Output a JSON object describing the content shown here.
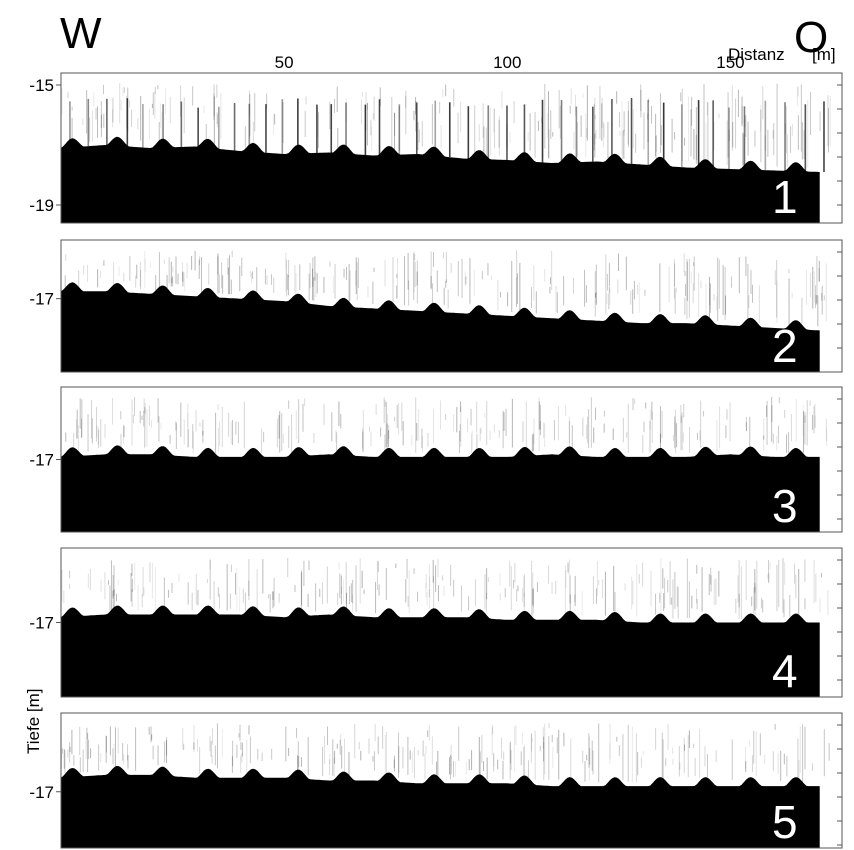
{
  "chart_data": {
    "type": "area",
    "title": "",
    "direction_labels": {
      "left": "W",
      "right": "O"
    },
    "xlabel": "Distanz",
    "xunit": "[m]",
    "ylabel": "Tiefe [m]",
    "xlim": [
      0,
      175
    ],
    "x_ticks": [
      50,
      100,
      150
    ],
    "grid": false,
    "legend": "none",
    "panels": [
      {
        "id": "1",
        "label": "1",
        "ylim": [
          -14.6,
          -19.6
        ],
        "y_ticks": [
          -15,
          -19
        ],
        "profile": {
          "x": [
            0,
            10,
            20,
            30,
            40,
            50,
            60,
            70,
            80,
            90,
            100,
            110,
            120,
            130,
            140,
            150,
            160,
            170
          ],
          "y": [
            -17.1,
            -17.0,
            -17.1,
            -17.05,
            -17.2,
            -17.3,
            -17.25,
            -17.35,
            -17.3,
            -17.45,
            -17.5,
            -17.6,
            -17.55,
            -17.65,
            -17.75,
            -17.8,
            -17.85,
            -17.9
          ]
        }
      },
      {
        "id": "2",
        "label": "2",
        "ylim": [
          -15.8,
          -18.5
        ],
        "y_ticks": [
          -17
        ],
        "profile": {
          "x": [
            0,
            10,
            20,
            30,
            40,
            50,
            60,
            70,
            80,
            90,
            100,
            110,
            120,
            130,
            140,
            150,
            160,
            170
          ],
          "y": [
            -16.85,
            -16.85,
            -16.9,
            -16.95,
            -17.0,
            -17.05,
            -17.15,
            -17.2,
            -17.25,
            -17.3,
            -17.35,
            -17.4,
            -17.45,
            -17.5,
            -17.5,
            -17.55,
            -17.6,
            -17.65
          ]
        }
      },
      {
        "id": "3",
        "label": "3",
        "ylim": [
          -15.6,
          -18.4
        ],
        "y_ticks": [
          -17
        ],
        "profile": {
          "x": [
            0,
            10,
            20,
            30,
            40,
            50,
            60,
            70,
            80,
            90,
            100,
            110,
            120,
            130,
            140,
            150,
            160,
            170
          ],
          "y": [
            -16.95,
            -16.9,
            -16.9,
            -16.95,
            -16.95,
            -16.95,
            -16.9,
            -16.95,
            -16.95,
            -16.95,
            -16.95,
            -16.9,
            -16.95,
            -16.95,
            -16.95,
            -16.9,
            -16.95,
            -16.95
          ]
        }
      },
      {
        "id": "4",
        "label": "4",
        "ylim": [
          -15.6,
          -18.4
        ],
        "y_ticks": [
          -17
        ],
        "profile": {
          "x": [
            0,
            10,
            20,
            30,
            40,
            50,
            60,
            70,
            80,
            90,
            100,
            110,
            120,
            130,
            140,
            150,
            160,
            170
          ],
          "y": [
            -16.9,
            -16.85,
            -16.85,
            -16.85,
            -16.85,
            -16.9,
            -16.85,
            -16.9,
            -16.9,
            -16.9,
            -16.95,
            -16.95,
            -16.95,
            -17.0,
            -17.0,
            -17.0,
            -17.0,
            -17.0
          ]
        }
      },
      {
        "id": "5",
        "label": "5",
        "ylim": [
          -15.6,
          -18.0
        ],
        "y_ticks": [
          -17
        ],
        "profile": {
          "x": [
            0,
            10,
            20,
            30,
            40,
            50,
            60,
            70,
            80,
            90,
            100,
            110,
            120,
            130,
            140,
            150,
            160,
            170
          ],
          "y": [
            -16.75,
            -16.7,
            -16.7,
            -16.75,
            -16.75,
            -16.75,
            -16.8,
            -16.8,
            -16.85,
            -16.85,
            -16.85,
            -16.9,
            -16.9,
            -16.9,
            -16.9,
            -16.9,
            -16.9,
            -16.9
          ]
        }
      }
    ]
  }
}
